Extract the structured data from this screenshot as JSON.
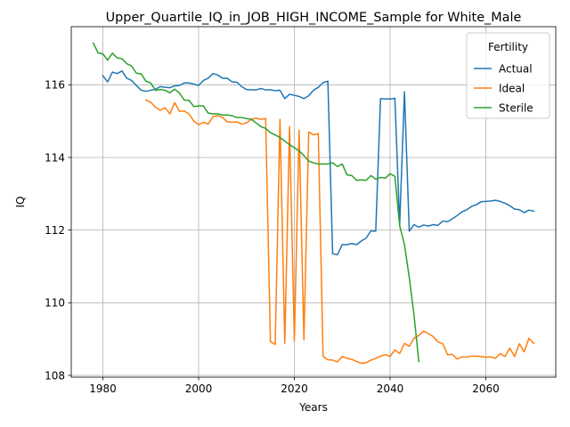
{
  "chart_data": {
    "type": "line",
    "title": "Upper_Quartile_IQ_in_JOB_HIGH_INCOME_Sample for White_Male",
    "xlabel": "Years",
    "ylabel": "IQ",
    "xlim": [
      1973.4,
      2074.6
    ],
    "ylim": [
      107.95,
      117.6
    ],
    "xticks": [
      1980,
      2000,
      2020,
      2040,
      2060
    ],
    "yticks": [
      108,
      110,
      112,
      114,
      116
    ],
    "grid": true,
    "legend": {
      "title": "Fertility",
      "position": "top-right"
    },
    "series": [
      {
        "name": "Actual",
        "color": "#1f77b4",
        "x": [
          1980,
          1981,
          1982,
          1983,
          1984,
          1985,
          1986,
          1987,
          1988,
          1989,
          1990,
          1991,
          1992,
          1993,
          1994,
          1995,
          1996,
          1997,
          1998,
          1999,
          2000,
          2001,
          2002,
          2003,
          2004,
          2005,
          2006,
          2007,
          2008,
          2009,
          2010,
          2011,
          2012,
          2013,
          2014,
          2015,
          2016,
          2017,
          2018,
          2019,
          2020,
          2021,
          2022,
          2023,
          2024,
          2025,
          2026,
          2027,
          2028,
          2029,
          2030,
          2031,
          2032,
          2033,
          2034,
          2035,
          2036,
          2037,
          2038,
          2039,
          2040,
          2041,
          2042,
          2043,
          2044,
          2045,
          2046,
          2047,
          2048,
          2049,
          2050,
          2051,
          2052,
          2053,
          2054,
          2055,
          2056,
          2057,
          2058,
          2059,
          2060,
          2061,
          2062,
          2063,
          2064,
          2065,
          2066,
          2067,
          2068,
          2069,
          2070
        ],
        "values": [
          116.25,
          116.08,
          116.35,
          116.31,
          116.38,
          116.18,
          116.12,
          115.98,
          115.85,
          115.82,
          115.85,
          115.88,
          115.95,
          115.93,
          115.92,
          115.97,
          115.98,
          116.05,
          116.05,
          116.02,
          115.98,
          116.12,
          116.18,
          116.31,
          116.27,
          116.18,
          116.18,
          116.08,
          116.07,
          115.95,
          115.87,
          115.86,
          115.86,
          115.9,
          115.86,
          115.86,
          115.84,
          115.85,
          115.62,
          115.74,
          115.71,
          115.68,
          115.62,
          115.7,
          115.85,
          115.93,
          116.06,
          116.1,
          111.35,
          111.32,
          111.6,
          111.6,
          111.63,
          111.6,
          111.7,
          111.78,
          111.98,
          111.97,
          115.62,
          115.61,
          115.61,
          115.63,
          112.15,
          115.81,
          111.97,
          112.15,
          112.08,
          112.14,
          112.11,
          112.15,
          112.13,
          112.25,
          112.23,
          112.31,
          112.4,
          112.5,
          112.56,
          112.65,
          112.7,
          112.78,
          112.79,
          112.8,
          112.82,
          112.79,
          112.74,
          112.67,
          112.58,
          112.56,
          112.48,
          112.55,
          112.52
        ]
      },
      {
        "name": "Ideal",
        "color": "#ff7f0e",
        "x": [
          1989,
          1990,
          1991,
          1992,
          1993,
          1994,
          1995,
          1996,
          1997,
          1998,
          1999,
          2000,
          2001,
          2002,
          2003,
          2004,
          2005,
          2006,
          2007,
          2008,
          2009,
          2010,
          2011,
          2012,
          2013,
          2014,
          2015,
          2016,
          2017,
          2018,
          2019,
          2020,
          2021,
          2022,
          2023,
          2024,
          2025,
          2026,
          2027,
          2028,
          2029,
          2030,
          2031,
          2032,
          2033,
          2034,
          2035,
          2036,
          2037,
          2038,
          2039,
          2040,
          2041,
          2042,
          2043,
          2044,
          2045,
          2046,
          2047,
          2048,
          2049,
          2050,
          2051,
          2052,
          2053,
          2054,
          2055,
          2056,
          2057,
          2058,
          2059,
          2060,
          2061,
          2062,
          2063,
          2064,
          2065,
          2066,
          2067,
          2068,
          2069,
          2070
        ],
        "values": [
          115.58,
          115.52,
          115.38,
          115.3,
          115.37,
          115.2,
          115.51,
          115.27,
          115.28,
          115.2,
          115.0,
          114.9,
          114.97,
          114.92,
          115.12,
          115.15,
          115.1,
          114.98,
          114.97,
          114.98,
          114.92,
          114.95,
          115.05,
          115.08,
          115.05,
          115.07,
          108.93,
          108.85,
          115.05,
          108.88,
          114.85,
          108.95,
          114.75,
          108.98,
          114.7,
          114.62,
          114.66,
          108.52,
          108.43,
          108.42,
          108.37,
          108.52,
          108.47,
          108.44,
          108.38,
          108.33,
          108.35,
          108.42,
          108.47,
          108.53,
          108.57,
          108.52,
          108.7,
          108.6,
          108.88,
          108.8,
          109.02,
          109.1,
          109.22,
          109.15,
          109.07,
          108.92,
          108.87,
          108.57,
          108.58,
          108.45,
          108.51,
          108.5,
          108.53,
          108.53,
          108.52,
          108.5,
          108.51,
          108.47,
          108.6,
          108.52,
          108.75,
          108.52,
          108.87,
          108.65,
          109.02,
          108.88
        ]
      },
      {
        "name": "Sterile",
        "color": "#2ca02c",
        "x": [
          1978,
          1979,
          1980,
          1981,
          1982,
          1983,
          1984,
          1985,
          1986,
          1987,
          1988,
          1989,
          1990,
          1991,
          1992,
          1993,
          1994,
          1995,
          1996,
          1997,
          1998,
          1999,
          2000,
          2001,
          2002,
          2003,
          2004,
          2005,
          2006,
          2007,
          2008,
          2009,
          2010,
          2011,
          2012,
          2013,
          2014,
          2015,
          2016,
          2017,
          2018,
          2019,
          2020,
          2021,
          2022,
          2023,
          2024,
          2025,
          2026,
          2027,
          2028,
          2029,
          2030,
          2031,
          2032,
          2033,
          2034,
          2035,
          2036,
          2037,
          2038,
          2039,
          2040,
          2041,
          2042,
          2043,
          2044,
          2045,
          2046
        ],
        "values": [
          117.15,
          116.88,
          116.85,
          116.68,
          116.87,
          116.74,
          116.72,
          116.58,
          116.52,
          116.32,
          116.3,
          116.1,
          116.05,
          115.85,
          115.87,
          115.85,
          115.78,
          115.88,
          115.77,
          115.58,
          115.57,
          115.4,
          115.42,
          115.42,
          115.22,
          115.2,
          115.2,
          115.17,
          115.17,
          115.15,
          115.1,
          115.1,
          115.07,
          115.05,
          114.95,
          114.85,
          114.8,
          114.68,
          114.62,
          114.55,
          114.45,
          114.35,
          114.27,
          114.18,
          114.05,
          113.9,
          113.85,
          113.82,
          113.82,
          113.82,
          113.85,
          113.75,
          113.82,
          113.52,
          113.5,
          113.37,
          113.38,
          113.37,
          113.5,
          113.4,
          113.45,
          113.43,
          113.55,
          113.48,
          112.12,
          111.6,
          110.7,
          109.65,
          108.38
        ]
      }
    ]
  }
}
